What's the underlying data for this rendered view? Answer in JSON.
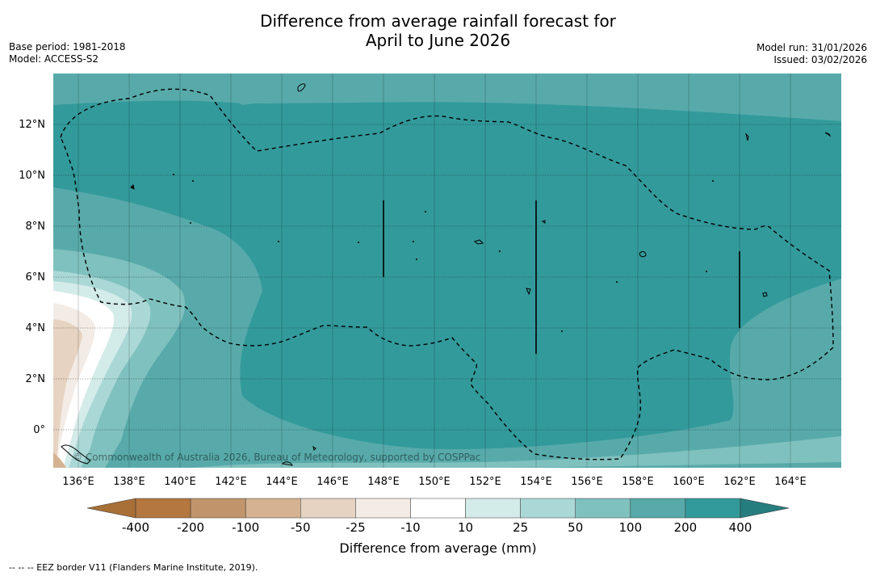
{
  "title": {
    "line1": "Difference from average rainfall forecast for",
    "line2": "April to June 2026"
  },
  "meta_left": {
    "base_period": "Base period: 1981-2018",
    "model": "Model: ACCESS-S2"
  },
  "meta_right": {
    "model_run": "Model run: 31/01/2026",
    "issued": "Issued: 03/02/2026"
  },
  "map": {
    "lat_labels": [
      "12°N",
      "10°N",
      "8°N",
      "6°N",
      "4°N",
      "2°N",
      "0°"
    ],
    "lon_labels": [
      "136°E",
      "138°E",
      "140°E",
      "142°E",
      "144°E",
      "146°E",
      "148°E",
      "150°E",
      "152°E",
      "154°E",
      "156°E",
      "158°E",
      "160°E",
      "162°E",
      "164°E"
    ],
    "copyright": "© Commonwealth of Australia 2026, Bureau of Meteorology, supported by COSPPac"
  },
  "colorbar": {
    "labels": [
      "-400",
      "-200",
      "-100",
      "-50",
      "-25",
      "-10",
      "10",
      "25",
      "50",
      "100",
      "200",
      "400"
    ],
    "colors": [
      "#a86f37",
      "#b3773f",
      "#c1946b",
      "#d4b292",
      "#e6d3c1",
      "#f3ece6",
      "#ffffff",
      "#d3ebe9",
      "#aad8d6",
      "#7fc1be",
      "#58aaaa",
      "#339a9b",
      "#267d7e"
    ],
    "title": "Difference from average (mm)"
  },
  "footnote": "--  --  -- EEZ border V11 (Flanders Marine Institute, 2019)."
}
